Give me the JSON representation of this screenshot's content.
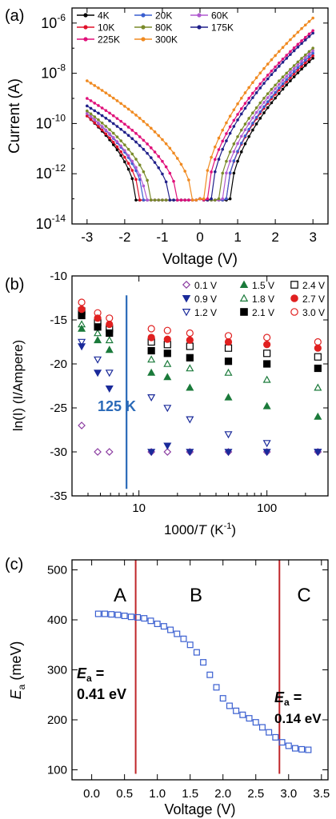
{
  "panels": {
    "a": {
      "label": "(a)"
    },
    "b": {
      "label": "(b)"
    },
    "c": {
      "label": "(c)"
    }
  },
  "chart_data": [
    {
      "panel": "(a)",
      "type": "line",
      "xlabel": "Voltage (V)",
      "ylabel": "Current (A)",
      "xlim": [
        -3.4,
        3.4
      ],
      "ylim_log10": [
        -14,
        -5.4
      ],
      "yscale": "log",
      "xticks": [
        "-3",
        "-2",
        "-1",
        "0",
        "1",
        "2",
        "3"
      ],
      "yticks": [
        {
          "base": "10",
          "exp": "-6",
          "v": -6
        },
        {
          "base": "10",
          "exp": "-8",
          "v": -8
        },
        {
          "base": "10",
          "exp": "-10",
          "v": -10
        },
        {
          "base": "10",
          "exp": "-12",
          "v": -12
        },
        {
          "base": "10",
          "exp": "-14",
          "v": -14
        }
      ],
      "legend_position": "top-left",
      "series": [
        {
          "name": "4K",
          "color": "#000000",
          "ymin": -13,
          "neg": [
            -1.7,
            -13,
            -3,
            -9.7
          ],
          "pos": [
            0.8,
            -13,
            3,
            -7.4
          ]
        },
        {
          "name": "10K",
          "color": "#e0102a",
          "ymin": -13,
          "neg": [
            -1.6,
            -13,
            -3,
            -9.7
          ],
          "pos": [
            0.7,
            -13,
            3,
            -7.3
          ]
        },
        {
          "name": "20K",
          "color": "#3a5fd0",
          "ymin": -13,
          "neg": [
            -1.5,
            -13,
            -3,
            -9.6
          ],
          "pos": [
            0.7,
            -13,
            3,
            -7.2
          ]
        },
        {
          "name": "60K",
          "color": "#b05ad0",
          "ymin": -13,
          "neg": [
            -1.45,
            -13,
            -3,
            -9.6
          ],
          "pos": [
            0.6,
            -13,
            3,
            -7.1
          ]
        },
        {
          "name": "80K",
          "color": "#7a8a2a",
          "ymin": -13,
          "neg": [
            -1.3,
            -13,
            -3,
            -9.5
          ],
          "pos": [
            0.5,
            -13,
            3,
            -7.0
          ]
        },
        {
          "name": "175K",
          "color": "#20208a",
          "ymin": -13,
          "neg": [
            -0.8,
            -13,
            -3,
            -9.3
          ],
          "pos": [
            0.3,
            -13,
            3,
            -6.4
          ]
        },
        {
          "name": "225K",
          "color": "#e0107a",
          "ymin": -13,
          "neg": [
            -0.6,
            -13,
            -3,
            -9.0
          ],
          "pos": [
            0.2,
            -13,
            3,
            -6.3
          ]
        },
        {
          "name": "300K",
          "color": "#f08a20",
          "ymin": -13,
          "neg": [
            -0.2,
            -13,
            -3,
            -8.3
          ],
          "pos": [
            0.1,
            -13,
            3,
            -5.8
          ]
        }
      ]
    },
    {
      "panel": "(b)",
      "type": "scatter",
      "xlabel_main": "1000/",
      "xlabel_var": "T",
      "xlabel_unit": " (K",
      "xlabel_sup": "-1",
      "xlabel_close": ")",
      "ylabel": "ln(I) (I/Ampere)",
      "xscale": "log",
      "xlim": [
        3,
        300
      ],
      "ylim": [
        -35,
        -10
      ],
      "xticks": [
        "10",
        "100"
      ],
      "yticks": [
        "-10",
        "-15",
        "-20",
        "-25",
        "-30",
        "-35"
      ],
      "annotation": "125 K",
      "marker_line_x": 8,
      "x": [
        3.57,
        4.76,
        5.88,
        12.5,
        16.7,
        25.0,
        50.0,
        100.0,
        250.0
      ],
      "series": [
        {
          "name": "0.1 V",
          "marker": "diamond-open",
          "color": "#8a3aa0",
          "values": [
            -27.0,
            -30.0,
            -30.0,
            -30.0,
            -30.0,
            -30.0,
            -30.0,
            -30.0,
            -30.0
          ]
        },
        {
          "name": "0.9 V",
          "marker": "tri-down-filled",
          "color": "#1a2a9a",
          "values": [
            -18.0,
            -21.0,
            -22.8,
            -30.0,
            -29.3,
            -30.0,
            -30.0,
            -30.0,
            -30.0
          ]
        },
        {
          "name": "1.2 V",
          "marker": "tri-down-open",
          "color": "#1a2a9a",
          "values": [
            -17.5,
            -19.5,
            -21.0,
            -23.8,
            -25.0,
            -26.3,
            -28.0,
            -29.0,
            -30.0
          ]
        },
        {
          "name": "1.5 V",
          "marker": "tri-up-filled",
          "color": "#1a7a3a",
          "values": [
            -16.0,
            -17.3,
            -18.4,
            -21.0,
            -21.5,
            -22.7,
            -23.8,
            -24.8,
            -26.0
          ]
        },
        {
          "name": "1.8 V",
          "marker": "tri-up-open",
          "color": "#1a7a3a",
          "values": [
            -15.5,
            -16.5,
            -17.3,
            -19.5,
            -20.0,
            -20.5,
            -21.0,
            -21.8,
            -22.7
          ]
        },
        {
          "name": "2.1 V",
          "marker": "square-filled",
          "color": "#000000",
          "values": [
            -14.5,
            -15.8,
            -16.5,
            -18.5,
            -18.8,
            -19.3,
            -19.7,
            -20.0,
            -20.5
          ]
        },
        {
          "name": "2.4 V",
          "marker": "square-open",
          "color": "#000000",
          "values": [
            -14.0,
            -15.3,
            -16.0,
            -17.5,
            -17.8,
            -18.0,
            -18.2,
            -18.8,
            -19.2
          ]
        },
        {
          "name": "2.7 V",
          "marker": "circle-filled",
          "color": "#e02020",
          "values": [
            -13.8,
            -14.8,
            -15.5,
            -17.0,
            -17.2,
            -17.3,
            -17.5,
            -17.8,
            -18.2
          ]
        },
        {
          "name": "3.0 V",
          "marker": "circle-open",
          "color": "#e02020",
          "values": [
            -13.0,
            -14.2,
            -14.8,
            -16.0,
            -16.2,
            -16.5,
            -16.8,
            -17.0,
            -17.5
          ]
        }
      ]
    },
    {
      "panel": "(c)",
      "type": "scatter",
      "xlabel": "Voltage (V)",
      "ylabel_main": "E",
      "ylabel_sub": "a",
      "ylabel_unit": " (meV)",
      "xlim": [
        -0.3,
        3.6
      ],
      "ylim": [
        80,
        520
      ],
      "xticks": [
        "0.0",
        "0.5",
        "1.0",
        "1.5",
        "2.0",
        "2.5",
        "3.0",
        "3.5"
      ],
      "yticks": [
        "100",
        "200",
        "300",
        "400",
        "500"
      ],
      "region_labels": [
        "A",
        "B",
        "C"
      ],
      "vlines": [
        0.67,
        2.86
      ],
      "annotations": [
        {
          "sym": "E",
          "sub": "a",
          "eq": " =",
          "val": "0.41 eV"
        },
        {
          "sym": "E",
          "sub": "a",
          "eq": " =",
          "val": "0.14 eV"
        }
      ],
      "marker": "square-open",
      "color": "#3a5fd0",
      "x": [
        0.1,
        0.2,
        0.3,
        0.4,
        0.5,
        0.6,
        0.7,
        0.8,
        0.9,
        1.0,
        1.1,
        1.2,
        1.3,
        1.4,
        1.5,
        1.6,
        1.7,
        1.8,
        1.9,
        2.0,
        2.1,
        2.2,
        2.3,
        2.4,
        2.5,
        2.6,
        2.7,
        2.8,
        2.9,
        3.0,
        3.1,
        3.2,
        3.3
      ],
      "values": [
        412,
        412,
        411,
        410,
        408,
        406,
        405,
        403,
        398,
        392,
        387,
        380,
        372,
        362,
        350,
        335,
        315,
        290,
        265,
        243,
        228,
        218,
        210,
        203,
        195,
        185,
        175,
        165,
        155,
        148,
        143,
        141,
        140
      ]
    }
  ]
}
